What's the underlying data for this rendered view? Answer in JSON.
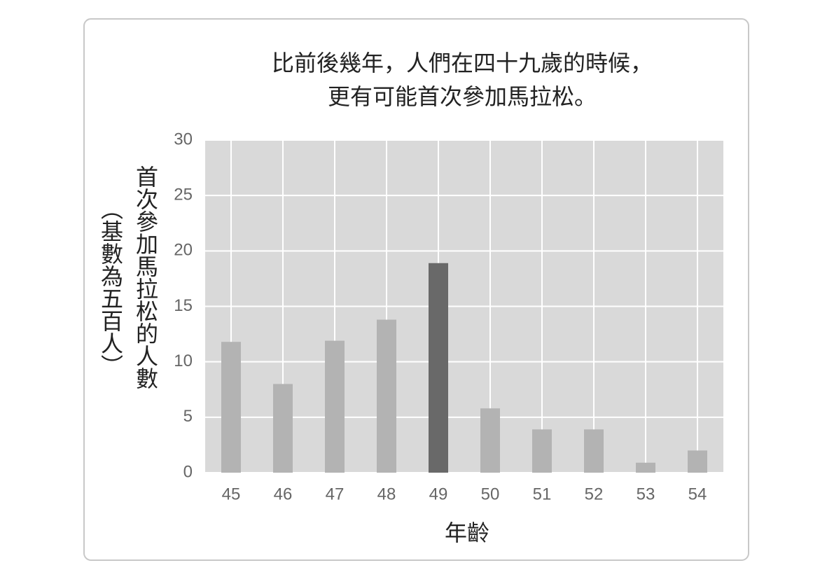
{
  "chart_data": {
    "type": "bar",
    "title": [
      "比前後幾年，人們在四十九歲的時候，",
      "更有可能首次參加馬拉松。"
    ],
    "x_label": "年齡",
    "y_label": [
      "首次參加馬拉松的人數",
      "（基數為五百人）"
    ],
    "categories": [
      "45",
      "46",
      "47",
      "48",
      "49",
      "50",
      "51",
      "52",
      "53",
      "54"
    ],
    "values": [
      11.8,
      8.0,
      11.9,
      13.8,
      18.9,
      5.8,
      3.9,
      3.9,
      0.9,
      2.0
    ],
    "colors": [
      "#b3b3b3",
      "#b3b3b3",
      "#b3b3b3",
      "#b3b3b3",
      "#696969",
      "#b3b3b3",
      "#b3b3b3",
      "#b3b3b3",
      "#b3b3b3",
      "#b3b3b3"
    ],
    "ylim": [
      0,
      30
    ],
    "yticks": [
      0,
      5,
      10,
      15,
      20,
      25,
      30
    ],
    "grid": true
  }
}
